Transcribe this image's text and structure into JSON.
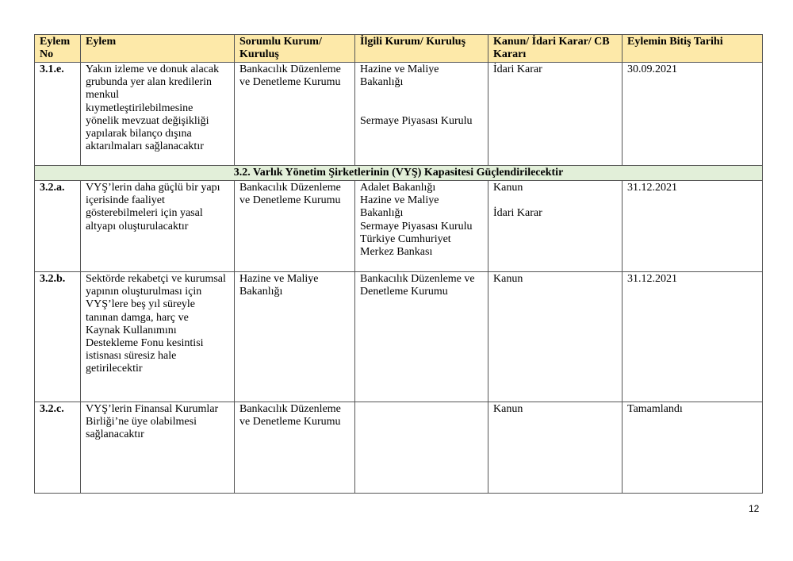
{
  "header": {
    "no": "Eylem\nNo",
    "action": "Eylem",
    "responsible": "Sorumlu Kurum/\nKuruluş",
    "related": "İlgili Kurum/ Kuruluş",
    "law": "Kanun/ İdari Karar/ CB\nKararı",
    "deadline": "Eylemin Bitiş Tarihi"
  },
  "rows": [
    {
      "no": "3.1.e.",
      "action": "Yakın izleme ve donuk alacak\ngrubunda yer alan kredilerin\nmenkul\nkıymetleştirilebilmesine\nyönelik mevzuat değişikliği\nyapılarak bilanço dışına\naktarılmaları sağlanacaktır",
      "responsible": "Bankacılık Düzenleme\nve Denetleme Kurumu",
      "related": "Hazine ve Maliye\nBakanlığı\n\n\nSermaye Piyasası Kurulu",
      "law": "İdari Karar",
      "deadline": "30.09.2021"
    },
    {
      "no": "3.2.a.",
      "action": "VYŞ’lerin daha güçlü bir yapı\niçerisinde faaliyet\ngösterebilmeleri için yasal\naltyapı oluşturulacaktır",
      "responsible": "Bankacılık Düzenleme\nve Denetleme Kurumu",
      "related": "Adalet Bakanlığı\nHazine ve Maliye\nBakanlığı\nSermaye Piyasası Kurulu\nTürkiye Cumhuriyet\nMerkez Bankası",
      "law": "Kanun\n\nİdari Karar",
      "deadline": "31.12.2021"
    },
    {
      "no": "3.2.b.",
      "action": "Sektörde rekabetçi ve kurumsal\nyapının oluşturulması için\nVYŞ’lere beş yıl süreyle\ntanınan  damga, harç ve\nKaynak Kullanımını\nDestekleme Fonu kesintisi\nistisnası süresiz hale\ngetirilecektir",
      "responsible": "Hazine ve Maliye\nBakanlığı",
      "related": "Bankacılık Düzenleme ve\nDenetleme Kurumu",
      "law": "Kanun",
      "deadline": "31.12.2021"
    },
    {
      "no": "3.2.c.",
      "action": "VYŞ’lerin Finansal Kurumlar\nBirliği’ne üye olabilmesi\nsağlanacaktır",
      "responsible": "Bankacılık Düzenleme\nve Denetleme Kurumu",
      "related": "",
      "law": "Kanun",
      "deadline": "Tamamlandı"
    }
  ],
  "section": "3.2. Varlık Yönetim Şirketlerinin (VYŞ) Kapasitesi Güçlendirilecektir",
  "page_number": "12",
  "colors": {
    "header_bg": "#fde9a9",
    "section_bg": "#e2efd9"
  }
}
